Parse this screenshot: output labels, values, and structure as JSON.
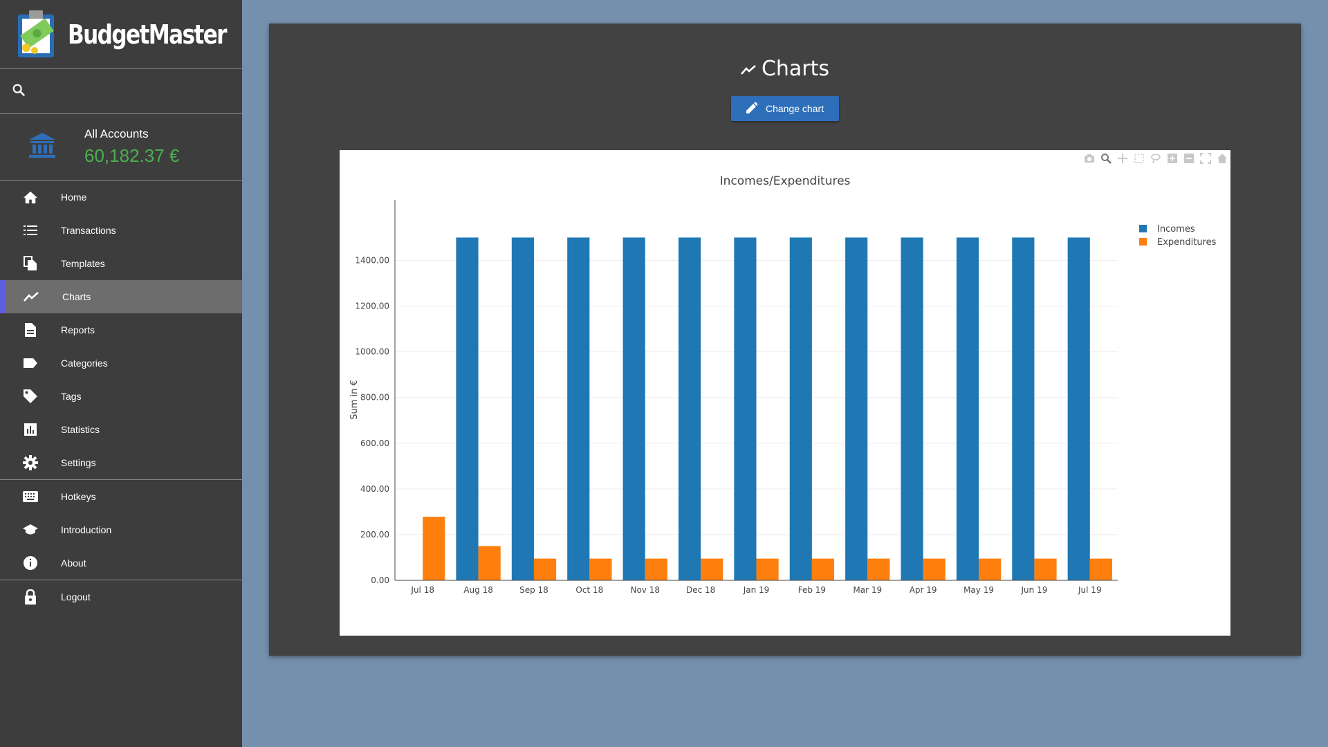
{
  "app": {
    "name": "BudgetMaster"
  },
  "search": {
    "placeholder": ""
  },
  "account": {
    "name": "All Accounts",
    "balance": "60,182.37 €",
    "balance_color": "#4caf50"
  },
  "nav": {
    "items": [
      {
        "label": "Home",
        "icon": "home-icon"
      },
      {
        "label": "Transactions",
        "icon": "list-icon"
      },
      {
        "label": "Templates",
        "icon": "file-copy-icon"
      },
      {
        "label": "Charts",
        "icon": "show-chart-icon",
        "active": true
      },
      {
        "label": "Reports",
        "icon": "description-icon"
      },
      {
        "label": "Categories",
        "icon": "label-icon"
      },
      {
        "label": "Tags",
        "icon": "tag-icon"
      },
      {
        "label": "Statistics",
        "icon": "assessment-icon"
      },
      {
        "label": "Settings",
        "icon": "gear-icon"
      }
    ],
    "items2": [
      {
        "label": "Hotkeys",
        "icon": "keyboard-icon"
      },
      {
        "label": "Introduction",
        "icon": "school-icon"
      },
      {
        "label": "About",
        "icon": "info-icon"
      }
    ],
    "logout": {
      "label": "Logout",
      "icon": "lock-icon"
    }
  },
  "main": {
    "title": "Charts",
    "change_chart_label": "Change chart"
  },
  "colors": {
    "accent": "#2e6fba",
    "active_indicator": "#5e5ee0",
    "incomes": "#1f77b4",
    "expenditures": "#ff7f0e"
  },
  "chart_data": {
    "type": "bar",
    "title": "Incomes/Expenditures",
    "xlabel": "",
    "ylabel": "Sum in €",
    "categories": [
      "Jul 18",
      "Aug 18",
      "Sep 18",
      "Oct 18",
      "Nov 18",
      "Dec 18",
      "Jan 19",
      "Feb 19",
      "Mar 19",
      "Apr 19",
      "May 19",
      "Jun 19",
      "Jul 19"
    ],
    "series": [
      {
        "name": "Incomes",
        "color": "#1f77b4",
        "values": [
          0,
          1500,
          1500,
          1500,
          1500,
          1500,
          1500,
          1500,
          1500,
          1500,
          1500,
          1500,
          1500
        ]
      },
      {
        "name": "Expenditures",
        "color": "#ff7f0e",
        "values": [
          278,
          150,
          95,
          95,
          95,
          95,
          95,
          95,
          95,
          95,
          95,
          95,
          95
        ]
      }
    ],
    "ylim": [
      0,
      1580
    ],
    "yticks": [
      0,
      200,
      400,
      600,
      800,
      1000,
      1200,
      1400
    ],
    "ytick_labels": [
      "0.00",
      "200.00",
      "400.00",
      "600.00",
      "800.00",
      "1000.00",
      "1200.00",
      "1400.00"
    ],
    "grid": true,
    "legend_position": "top-right"
  }
}
